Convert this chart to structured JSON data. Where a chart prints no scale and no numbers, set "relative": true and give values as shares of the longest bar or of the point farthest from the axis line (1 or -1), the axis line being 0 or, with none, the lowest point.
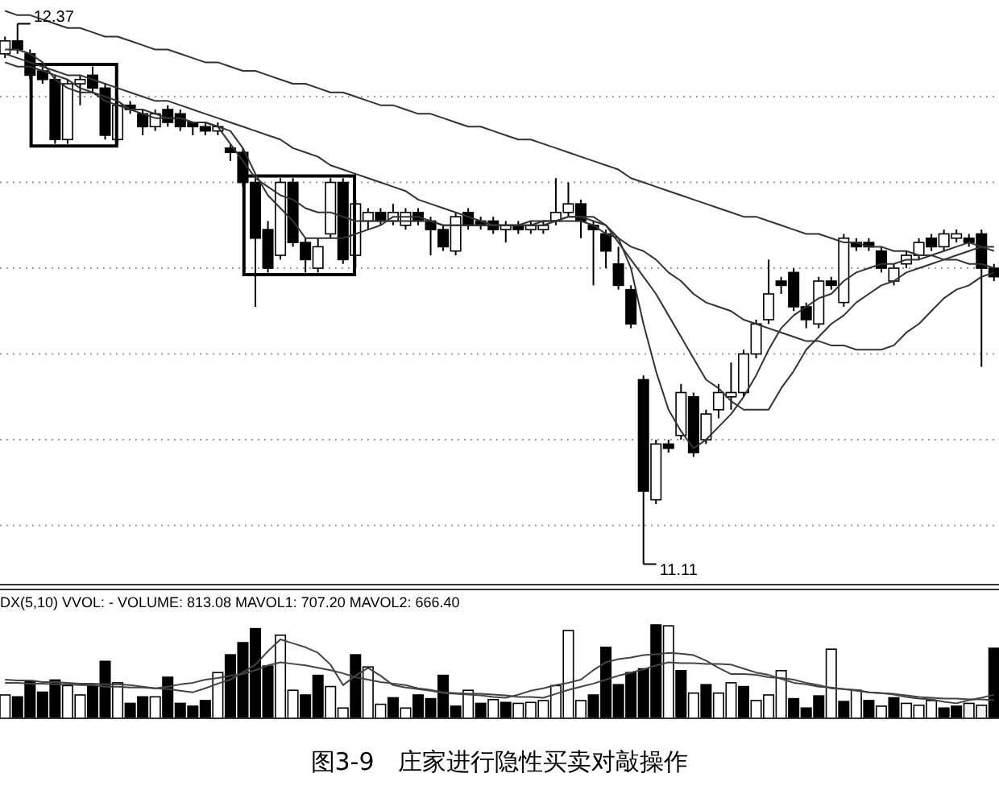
{
  "chart_data": [
    {
      "type": "candlestick",
      "categories": [
        null,
        null,
        null,
        null,
        null,
        null,
        null,
        null,
        null,
        null,
        null,
        null,
        null,
        null,
        null,
        null,
        null,
        null,
        null,
        null,
        null,
        null,
        null,
        null,
        null,
        null,
        null,
        null,
        null,
        null,
        null,
        null,
        null,
        null,
        null,
        null,
        null,
        null,
        null,
        null,
        null,
        null,
        null,
        null,
        null,
        null,
        null,
        null,
        null,
        null,
        null,
        null,
        null,
        null,
        null,
        null,
        null,
        null,
        null,
        null,
        null,
        null,
        null,
        null,
        null,
        null,
        null,
        null,
        null,
        null,
        null,
        null,
        null,
        null,
        null,
        null,
        null,
        null,
        null,
        null
      ],
      "ohlc": [
        [
          12.3,
          12.34,
          12.29,
          12.33
        ],
        [
          12.33,
          12.37,
          12.3,
          12.31
        ],
        [
          12.3,
          12.31,
          12.24,
          12.25
        ],
        [
          12.26,
          12.27,
          12.23,
          12.24
        ],
        [
          12.24,
          12.25,
          12.09,
          12.1
        ],
        [
          12.1,
          12.24,
          12.09,
          12.23
        ],
        [
          12.23,
          12.25,
          12.18,
          12.24
        ],
        [
          12.25,
          12.27,
          12.21,
          12.22
        ],
        [
          12.22,
          12.23,
          12.1,
          12.11
        ],
        [
          12.1,
          12.2,
          12.09,
          12.18
        ],
        [
          12.18,
          12.19,
          12.16,
          12.17
        ],
        [
          12.16,
          12.17,
          12.11,
          12.13
        ],
        [
          12.13,
          12.17,
          12.12,
          12.16
        ],
        [
          12.17,
          12.18,
          12.13,
          12.14
        ],
        [
          12.16,
          12.17,
          12.12,
          12.13
        ],
        [
          12.14,
          12.14,
          12.11,
          12.13
        ],
        [
          12.13,
          12.14,
          12.11,
          12.12
        ],
        [
          12.12,
          12.14,
          12.11,
          12.13
        ],
        [
          12.08,
          12.09,
          12.05,
          12.07
        ],
        [
          12.07,
          12.08,
          11.99,
          12.0
        ],
        [
          12.0,
          12.01,
          11.71,
          11.87
        ],
        [
          11.89,
          11.91,
          11.79,
          11.8
        ],
        [
          11.83,
          12.01,
          11.82,
          12.0
        ],
        [
          12.0,
          12.01,
          11.85,
          11.86
        ],
        [
          11.86,
          11.87,
          11.79,
          11.82
        ],
        [
          11.8,
          11.87,
          11.79,
          11.85
        ],
        [
          11.88,
          12.01,
          11.87,
          12.0
        ],
        [
          12.0,
          12.01,
          11.81,
          11.82
        ],
        [
          11.83,
          11.96,
          11.8,
          11.95
        ],
        [
          11.91,
          11.94,
          11.89,
          11.93
        ],
        [
          11.93,
          11.94,
          11.9,
          11.91
        ],
        [
          11.91,
          11.95,
          11.9,
          11.93
        ],
        [
          11.9,
          11.94,
          11.89,
          11.93
        ],
        [
          11.93,
          11.94,
          11.9,
          11.91
        ],
        [
          11.91,
          11.92,
          11.83,
          11.89
        ],
        [
          11.89,
          11.9,
          11.84,
          11.85
        ],
        [
          11.84,
          11.93,
          11.83,
          11.92
        ],
        [
          11.93,
          11.94,
          11.89,
          11.9
        ],
        [
          11.91,
          11.92,
          11.89,
          11.9
        ],
        [
          11.91,
          11.92,
          11.88,
          11.89
        ],
        [
          11.89,
          11.91,
          11.86,
          11.9
        ],
        [
          11.9,
          11.91,
          11.88,
          11.89
        ],
        [
          11.89,
          11.91,
          11.88,
          11.9
        ],
        [
          11.89,
          11.91,
          11.88,
          11.9
        ],
        [
          11.91,
          12.01,
          11.9,
          11.93
        ],
        [
          11.93,
          12.0,
          11.92,
          11.95
        ],
        [
          11.95,
          11.96,
          11.87,
          11.91
        ],
        [
          11.9,
          11.91,
          11.76,
          11.89
        ],
        [
          11.88,
          11.89,
          11.8,
          11.84
        ],
        [
          11.81,
          11.85,
          11.75,
          11.76
        ],
        [
          11.75,
          11.76,
          11.66,
          11.67
        ],
        [
          11.54,
          11.55,
          11.11,
          11.28
        ],
        [
          11.26,
          11.4,
          11.25,
          11.39
        ],
        [
          11.39,
          11.4,
          11.37,
          11.38
        ],
        [
          11.41,
          11.53,
          11.4,
          11.51
        ],
        [
          11.5,
          11.51,
          11.36,
          11.37
        ],
        [
          11.4,
          11.47,
          11.39,
          11.46
        ],
        [
          11.47,
          11.53,
          11.45,
          11.51
        ],
        [
          11.5,
          11.58,
          11.47,
          11.51
        ],
        [
          11.51,
          11.61,
          11.5,
          11.6
        ],
        [
          11.6,
          11.68,
          11.59,
          11.67
        ],
        [
          11.68,
          11.82,
          11.67,
          11.74
        ],
        [
          11.77,
          11.78,
          11.74,
          11.76
        ],
        [
          11.79,
          11.8,
          11.7,
          11.71
        ],
        [
          11.71,
          11.72,
          11.66,
          11.68
        ],
        [
          11.67,
          11.78,
          11.66,
          11.77
        ],
        [
          11.77,
          11.78,
          11.75,
          11.76
        ],
        [
          11.72,
          11.88,
          11.71,
          11.87
        ],
        [
          11.86,
          11.87,
          11.84,
          11.85
        ],
        [
          11.86,
          11.87,
          11.84,
          11.85
        ],
        [
          11.84,
          11.85,
          11.79,
          11.8
        ],
        [
          11.77,
          11.81,
          11.76,
          11.8
        ],
        [
          11.81,
          11.84,
          11.8,
          11.83
        ],
        [
          11.83,
          11.87,
          11.82,
          11.86
        ],
        [
          11.87,
          11.88,
          11.84,
          11.85
        ],
        [
          11.85,
          11.89,
          11.84,
          11.88
        ],
        [
          11.87,
          11.89,
          11.86,
          11.88
        ],
        [
          11.87,
          11.88,
          11.85,
          11.86
        ],
        [
          11.88,
          11.89,
          11.57,
          11.8
        ],
        [
          11.8,
          11.81,
          11.77,
          11.78
        ]
      ],
      "series": [
        {
          "type": "line",
          "color": "#333333",
          "values": [
            12.31,
            12.31,
            12.3,
            12.28,
            12.24,
            12.22,
            12.21,
            12.21,
            12.2,
            12.19,
            12.17,
            12.16,
            12.15,
            12.15,
            12.15,
            12.14,
            12.14,
            12.13,
            12.12,
            12.08,
            12.02,
            11.97,
            11.94,
            11.91,
            11.87,
            11.87,
            11.87,
            11.87,
            11.88,
            11.89,
            11.9,
            11.92,
            11.92,
            11.92,
            11.91,
            11.9,
            11.9,
            11.9,
            11.9,
            11.9,
            11.9,
            11.9,
            11.9,
            11.9,
            11.91,
            11.92,
            11.92,
            11.92,
            11.9,
            11.87,
            11.8,
            11.67,
            11.56,
            11.47,
            11.42,
            11.38,
            11.4,
            11.43,
            11.46,
            11.5,
            11.55,
            11.61,
            11.66,
            11.69,
            11.71,
            11.73,
            11.74,
            11.77,
            11.79,
            11.8,
            11.81,
            11.81,
            11.82,
            11.82,
            11.83,
            11.84,
            11.85,
            11.86,
            11.85,
            11.84
          ]
        },
        {
          "type": "line",
          "color": "#333333",
          "values": [
            12.28,
            12.27,
            12.27,
            12.26,
            12.25,
            12.24,
            12.22,
            12.21,
            12.19,
            12.18,
            12.17,
            12.17,
            12.16,
            12.15,
            12.15,
            12.14,
            12.14,
            12.13,
            12.09,
            12.05,
            12.01,
            11.99,
            11.97,
            11.96,
            11.94,
            11.93,
            11.93,
            11.92,
            11.91,
            11.91,
            11.91,
            11.91,
            11.91,
            11.91,
            11.91,
            11.9,
            11.9,
            11.9,
            11.9,
            11.9,
            11.9,
            11.9,
            11.9,
            11.91,
            11.91,
            11.92,
            11.92,
            11.91,
            11.9,
            11.86,
            11.82,
            11.78,
            11.74,
            11.69,
            11.64,
            11.59,
            11.54,
            11.52,
            11.49,
            11.47,
            11.47,
            11.47,
            11.52,
            11.56,
            11.61,
            11.64,
            11.67,
            11.69,
            11.72,
            11.74,
            11.76,
            11.77,
            11.79,
            11.8,
            11.81,
            11.82,
            11.83,
            11.84,
            11.85,
            11.85
          ]
        },
        {
          "type": "line",
          "color": "#333333",
          "values": [
            12.3,
            12.29,
            12.28,
            12.27,
            12.26,
            12.25,
            12.25,
            12.24,
            12.23,
            12.22,
            12.21,
            12.2,
            12.19,
            12.19,
            12.18,
            12.17,
            12.16,
            12.15,
            12.14,
            12.13,
            12.12,
            12.11,
            12.1,
            12.08,
            12.07,
            12.06,
            12.04,
            12.03,
            12.02,
            12.01,
            12.0,
            11.99,
            11.98,
            11.96,
            11.95,
            11.94,
            11.93,
            11.92,
            11.91,
            11.9,
            11.9,
            11.9,
            11.91,
            11.91,
            11.91,
            11.91,
            11.91,
            11.9,
            11.88,
            11.87,
            11.85,
            11.84,
            11.82,
            11.79,
            11.77,
            11.74,
            11.72,
            11.71,
            11.7,
            11.68,
            11.67,
            11.66,
            11.65,
            11.64,
            11.63,
            11.63,
            11.62,
            11.62,
            11.61,
            11.61,
            11.61,
            11.62,
            11.65,
            11.67,
            11.7,
            11.73,
            11.75,
            11.76,
            11.78,
            11.79
          ]
        },
        {
          "type": "line",
          "color": "#333333",
          "values": [
            12.4,
            12.39,
            12.39,
            12.38,
            12.37,
            12.36,
            12.36,
            12.35,
            12.34,
            12.34,
            12.33,
            12.32,
            12.31,
            12.31,
            12.3,
            12.29,
            12.28,
            12.28,
            12.27,
            12.26,
            12.26,
            12.25,
            12.24,
            12.23,
            12.23,
            12.22,
            12.21,
            12.21,
            12.2,
            12.19,
            12.18,
            12.18,
            12.17,
            12.16,
            12.16,
            12.15,
            12.14,
            12.13,
            12.13,
            12.12,
            12.11,
            12.1,
            12.1,
            12.09,
            12.08,
            12.07,
            12.06,
            12.05,
            12.04,
            12.03,
            12.01,
            12.0,
            11.99,
            11.98,
            11.97,
            11.96,
            11.95,
            11.94,
            11.93,
            11.92,
            11.92,
            11.91,
            11.9,
            11.89,
            11.88,
            11.88,
            11.87,
            11.86,
            11.86,
            11.85,
            11.85,
            11.84,
            11.84,
            11.83,
            11.83,
            11.82,
            11.82,
            11.81,
            11.81,
            11.8
          ]
        }
      ],
      "yticks": [
        {
          "value": 11.2,
          "label": null
        },
        {
          "value": 11.4,
          "label": null
        },
        {
          "value": 11.6,
          "label": null
        },
        {
          "value": 11.8,
          "label": null
        },
        {
          "value": 12.0,
          "label": null
        },
        {
          "value": 12.2,
          "label": null
        }
      ],
      "grid": "y",
      "annotations": [
        "12.37",
        "11.11"
      ]
    },
    {
      "type": "bar",
      "relative": true,
      "title": "DX(5,10) VVOL: -   VOLUME: 813.08 MAVOL1: 707.20 MAVOL2: 666.40",
      "categories": [
        null,
        null,
        null,
        null,
        null,
        null,
        null,
        null,
        null,
        null,
        null,
        null,
        null,
        null,
        null,
        null,
        null,
        null,
        null,
        null,
        null,
        null,
        null,
        null,
        null,
        null,
        null,
        null,
        null,
        null,
        null,
        null,
        null,
        null,
        null,
        null,
        null,
        null,
        null,
        null,
        null,
        null,
        null,
        null,
        null,
        null,
        null,
        null,
        null,
        null,
        null,
        null,
        null,
        null,
        null,
        null,
        null,
        null,
        null,
        null,
        null,
        null,
        null,
        null,
        null,
        null,
        null,
        null,
        null,
        null,
        null,
        null,
        null,
        null,
        null,
        null,
        null,
        null,
        null,
        null
      ],
      "values": [
        0.25,
        0.23,
        0.4,
        0.28,
        0.41,
        0.35,
        0.25,
        0.35,
        0.61,
        0.38,
        0.16,
        0.23,
        0.23,
        0.44,
        0.16,
        0.13,
        0.19,
        0.49,
        0.68,
        0.81,
        0.96,
        0.56,
        0.89,
        0.3,
        0.25,
        0.46,
        0.34,
        0.11,
        0.68,
        0.55,
        0.15,
        0.22,
        0.11,
        0.25,
        0.21,
        0.46,
        0.13,
        0.3,
        0.16,
        0.2,
        0.17,
        0.16,
        0.17,
        0.19,
        0.35,
        0.94,
        0.19,
        0.25,
        0.76,
        0.36,
        0.49,
        0.53,
        1,
        0.99,
        0.51,
        0.27,
        0.36,
        0.27,
        0.38,
        0.34,
        0.19,
        0.25,
        0.51,
        0.21,
        0.11,
        0.24,
        0.74,
        0.18,
        0.3,
        0.19,
        0.13,
        0.22,
        0.16,
        0.14,
        0.19,
        0.11,
        0.13,
        0.16,
        0.14,
        0.75
      ],
      "annotations": [
        "图3-9　庄家进行隐性买卖对敲操作"
      ],
      "colors": [
        "#ffffff",
        "#000000",
        "#000000",
        "#000000",
        "#000000",
        "#ffffff",
        "#ffffff",
        "#000000",
        "#000000",
        "#ffffff",
        "#000000",
        "#000000",
        "#ffffff",
        "#000000",
        "#000000",
        "#000000",
        "#000000",
        "#ffffff",
        "#000000",
        "#000000",
        "#000000",
        "#000000",
        "#ffffff",
        "#ffffff",
        "#000000",
        "#000000",
        "#ffffff",
        "#ffffff",
        "#000000",
        "#ffffff",
        "#ffffff",
        "#000000",
        "#ffffff",
        "#000000",
        "#000000",
        "#000000",
        "#000000",
        "#ffffff",
        "#000000",
        "#ffffff",
        "#000000",
        "#ffffff",
        "#ffffff",
        "#ffffff",
        "#ffffff",
        "#ffffff",
        "#ffffff",
        "#000000",
        "#000000",
        "#000000",
        "#000000",
        "#000000",
        "#000000",
        "#ffffff",
        "#000000",
        "#ffffff",
        "#000000",
        "#ffffff",
        "#ffffff",
        "#000000",
        "#ffffff",
        "#ffffff",
        "#ffffff",
        "#000000",
        "#000000",
        "#000000",
        "#ffffff",
        "#000000",
        "#ffffff",
        "#000000",
        "#ffffff",
        "#000000",
        "#ffffff",
        "#ffffff",
        "#ffffff",
        "#000000",
        "#000000",
        "#f2f2f2",
        "#f2f2f2",
        "#000000"
      ]
    },
    {
      "type": "line",
      "relative": true,
      "categories": [
        null,
        null,
        null,
        null,
        null,
        null,
        null,
        null,
        null,
        null,
        null,
        null,
        null,
        null,
        null,
        null,
        null,
        null,
        null,
        null,
        null,
        null,
        null,
        null,
        null,
        null,
        null,
        null,
        null,
        null,
        null,
        null,
        null,
        null,
        null,
        null,
        null,
        null,
        null,
        null,
        null,
        null,
        null,
        null,
        null,
        null,
        null,
        null,
        null,
        null,
        null,
        null,
        null,
        null,
        null,
        null,
        null,
        null,
        null,
        null,
        null,
        null,
        null,
        null,
        null,
        null,
        null,
        null,
        null,
        null,
        null,
        null,
        null,
        null,
        null,
        null,
        null,
        null,
        null,
        null
      ],
      "series": [
        {
          "color": "#444444",
          "values": [
            0.49,
            0.48,
            0.48,
            0.46,
            0.46,
            0.45,
            0.44,
            0.44,
            0.43,
            0.43,
            0.42,
            0.4,
            0.38,
            0.37,
            0.35,
            0.33,
            0.38,
            0.44,
            0.49,
            0.58,
            0.68,
            0.85,
            1,
            0.95,
            0.9,
            0.83,
            0.68,
            0.42,
            0.54,
            0.64,
            0.54,
            0.42,
            0.39,
            0.37,
            0.35,
            0.32,
            0.31,
            0.3,
            0.29,
            0.27,
            0.26,
            0.3,
            0.35,
            0.38,
            0.42,
            0.45,
            0.49,
            0.61,
            0.71,
            0.75,
            0.77,
            0.8,
            0.81,
            0.83,
            0.82,
            0.8,
            0.73,
            0.64,
            0.56,
            0.56,
            0.55,
            0.52,
            0.51,
            0.49,
            0.45,
            0.42,
            0.38,
            0.37,
            0.36,
            0.33,
            0.32,
            0.3,
            0.27,
            0.25,
            0.24,
            0.21,
            0.19,
            0.23,
            0.26,
            0.3
          ]
        },
        {
          "color": "#444444",
          "values": [
            0.45,
            0.45,
            0.44,
            0.44,
            0.43,
            0.43,
            0.42,
            0.42,
            0.4,
            0.4,
            0.39,
            0.39,
            0.38,
            0.4,
            0.43,
            0.45,
            0.49,
            0.51,
            0.54,
            0.56,
            0.61,
            0.67,
            0.71,
            0.69,
            0.67,
            0.64,
            0.61,
            0.57,
            0.52,
            0.49,
            0.46,
            0.44,
            0.42,
            0.38,
            0.36,
            0.33,
            0.32,
            0.31,
            0.31,
            0.3,
            0.29,
            0.27,
            0.27,
            0.26,
            0.31,
            0.36,
            0.4,
            0.44,
            0.49,
            0.54,
            0.58,
            0.62,
            0.67,
            0.71,
            0.7,
            0.7,
            0.69,
            0.69,
            0.68,
            0.63,
            0.58,
            0.55,
            0.5,
            0.45,
            0.43,
            0.4,
            0.39,
            0.37,
            0.35,
            0.33,
            0.32,
            0.31,
            0.29,
            0.27,
            0.26,
            0.25,
            0.25,
            0.24,
            0.24,
            0.23
          ]
        }
      ]
    }
  ]
}
